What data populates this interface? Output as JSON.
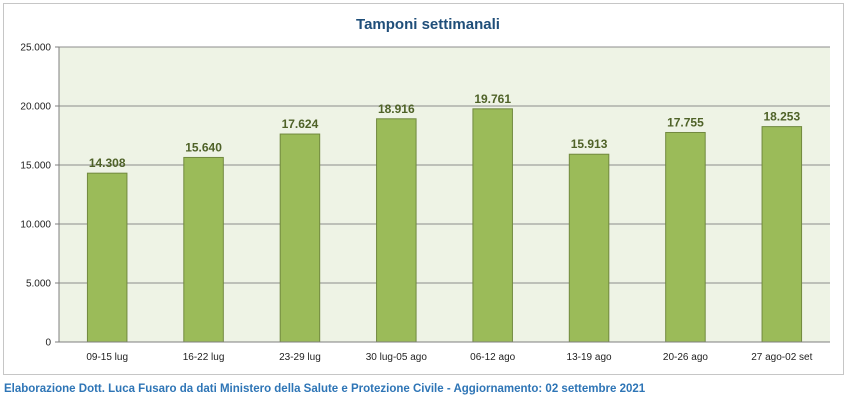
{
  "chart_data": {
    "type": "bar",
    "title": "Tamponi settimanali",
    "categories": [
      "09-15 lug",
      "16-22 lug",
      "23-29 lug",
      "30 lug-05 ago",
      "06-12 ago",
      "13-19 ago",
      "20-26 ago",
      "27 ago-02 set"
    ],
    "values": [
      14308,
      15640,
      17624,
      18916,
      19761,
      15913,
      17755,
      18253
    ],
    "data_labels": [
      "14.308",
      "15.640",
      "17.624",
      "18.916",
      "19.761",
      "15.913",
      "17.755",
      "18.253"
    ],
    "ylim": [
      0,
      25000
    ],
    "yticks": [
      0,
      5000,
      10000,
      15000,
      20000,
      25000
    ],
    "ytick_labels": [
      "0",
      "5.000",
      "10.000",
      "15.000",
      "20.000",
      "25.000"
    ],
    "xlabel": "",
    "ylabel": "",
    "grid": true,
    "legend": "none",
    "colors": {
      "bar_fill": "#9bbb59",
      "bar_stroke": "#71893f",
      "plot_background": "#eef3e5",
      "gridline": "#8c8c8c",
      "title": "#1f4e79",
      "data_label": "#4f6228"
    }
  },
  "footer": {
    "text": "Elaborazione Dott. Luca Fusaro da dati Ministero della Salute e Protezione Civile - Aggiornamento: 02 settembre 2021",
    "color": "#2e75b6"
  }
}
